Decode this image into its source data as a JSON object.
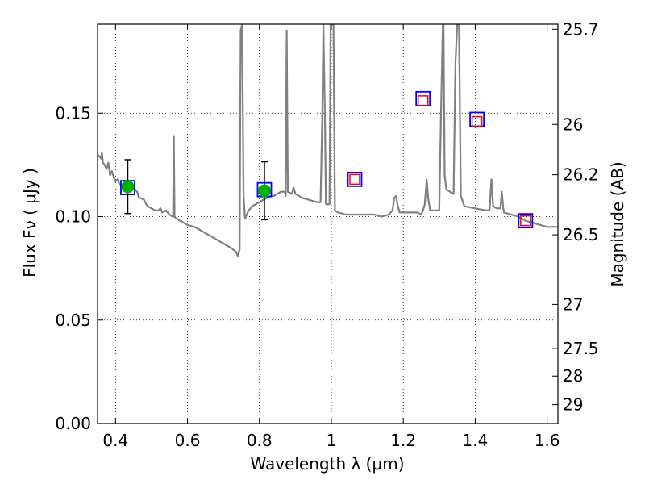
{
  "chart_data": {
    "type": "line",
    "xlabel": "Wavelength  λ (μm)",
    "ylabel": "Flux  Fν  ( μJy )",
    "y2label": "Magnitude (AB)",
    "xlim": [
      0.35,
      1.63
    ],
    "ylim": [
      0.0,
      0.193
    ],
    "grid": true,
    "x_ticks": [
      {
        "value": 0.4,
        "label": "0.4"
      },
      {
        "value": 0.6,
        "label": "0.6"
      },
      {
        "value": 0.8,
        "label": "0.8"
      },
      {
        "value": 1.0,
        "label": "1"
      },
      {
        "value": 1.2,
        "label": "1.2"
      },
      {
        "value": 1.4,
        "label": "1.4"
      },
      {
        "value": 1.6,
        "label": "1.6"
      }
    ],
    "y_ticks": [
      {
        "value": 0.0,
        "label": "0.00"
      },
      {
        "value": 0.05,
        "label": "0.05"
      },
      {
        "value": 0.1,
        "label": "0.10"
      },
      {
        "value": 0.15,
        "label": "0.15"
      }
    ],
    "y2_ticks": [
      {
        "value": 25.7,
        "label": "25.7"
      },
      {
        "value": 26.0,
        "label": "26"
      },
      {
        "value": 26.2,
        "label": "26.2"
      },
      {
        "value": 26.5,
        "label": "26.5"
      },
      {
        "value": 27.0,
        "label": "27"
      },
      {
        "value": 27.5,
        "label": "27.5"
      },
      {
        "value": 28.0,
        "label": "28"
      },
      {
        "value": 29.0,
        "label": "29"
      }
    ],
    "model_spectrum": {
      "color": "#808080",
      "points": [
        [
          0.35,
          0.13
        ],
        [
          0.36,
          0.128
        ],
        [
          0.362,
          0.131
        ],
        [
          0.365,
          0.126
        ],
        [
          0.37,
          0.125
        ],
        [
          0.375,
          0.123
        ],
        [
          0.38,
          0.126
        ],
        [
          0.385,
          0.12
        ],
        [
          0.39,
          0.122
        ],
        [
          0.395,
          0.119
        ],
        [
          0.4,
          0.117
        ],
        [
          0.405,
          0.118
        ],
        [
          0.41,
          0.116
        ],
        [
          0.42,
          0.115
        ],
        [
          0.43,
          0.115
        ],
        [
          0.44,
          0.115
        ],
        [
          0.45,
          0.114
        ],
        [
          0.46,
          0.112
        ],
        [
          0.465,
          0.109
        ],
        [
          0.47,
          0.109
        ],
        [
          0.48,
          0.108
        ],
        [
          0.485,
          0.106
        ],
        [
          0.49,
          0.105
        ],
        [
          0.5,
          0.104
        ],
        [
          0.51,
          0.103
        ],
        [
          0.52,
          0.103
        ],
        [
          0.525,
          0.104
        ],
        [
          0.53,
          0.102
        ],
        [
          0.54,
          0.103
        ],
        [
          0.55,
          0.101
        ],
        [
          0.558,
          0.1
        ],
        [
          0.56,
          0.1
        ],
        [
          0.562,
          0.139
        ],
        [
          0.564,
          0.1
        ],
        [
          0.57,
          0.099
        ],
        [
          0.58,
          0.098
        ],
        [
          0.59,
          0.097
        ],
        [
          0.6,
          0.096
        ],
        [
          0.62,
          0.095
        ],
        [
          0.64,
          0.093
        ],
        [
          0.66,
          0.091
        ],
        [
          0.68,
          0.089
        ],
        [
          0.7,
          0.087
        ],
        [
          0.72,
          0.085
        ],
        [
          0.735,
          0.083
        ],
        [
          0.74,
          0.081
        ],
        [
          0.745,
          0.084
        ],
        [
          0.748,
          0.19
        ],
        [
          0.752,
          0.193
        ],
        [
          0.756,
          0.11
        ],
        [
          0.76,
          0.099
        ],
        [
          0.765,
          0.101
        ],
        [
          0.77,
          0.103
        ],
        [
          0.78,
          0.105
        ],
        [
          0.79,
          0.106
        ],
        [
          0.8,
          0.107
        ],
        [
          0.81,
          0.108
        ],
        [
          0.82,
          0.109
        ],
        [
          0.83,
          0.11
        ],
        [
          0.84,
          0.11
        ],
        [
          0.85,
          0.111
        ],
        [
          0.86,
          0.112
        ],
        [
          0.87,
          0.112
        ],
        [
          0.873,
          0.11
        ],
        [
          0.876,
          0.19
        ],
        [
          0.879,
          0.112
        ],
        [
          0.89,
          0.111
        ],
        [
          0.895,
          0.114
        ],
        [
          0.9,
          0.111
        ],
        [
          0.91,
          0.11
        ],
        [
          0.92,
          0.109
        ],
        [
          0.94,
          0.108
        ],
        [
          0.96,
          0.107
        ],
        [
          0.97,
          0.107
        ],
        [
          0.975,
          0.15
        ],
        [
          0.978,
          0.193
        ],
        [
          0.982,
          0.15
        ],
        [
          0.985,
          0.106
        ],
        [
          0.99,
          0.106
        ],
        [
          0.995,
          0.106
        ],
        [
          0.998,
          0.193
        ],
        [
          1.002,
          0.193
        ],
        [
          1.006,
          0.193
        ],
        [
          1.01,
          0.103
        ],
        [
          1.02,
          0.102
        ],
        [
          1.04,
          0.101
        ],
        [
          1.06,
          0.101
        ],
        [
          1.08,
          0.101
        ],
        [
          1.1,
          0.101
        ],
        [
          1.12,
          0.101
        ],
        [
          1.14,
          0.1
        ],
        [
          1.16,
          0.101
        ],
        [
          1.17,
          0.103
        ],
        [
          1.175,
          0.109
        ],
        [
          1.18,
          0.11
        ],
        [
          1.185,
          0.105
        ],
        [
          1.19,
          0.102
        ],
        [
          1.2,
          0.102
        ],
        [
          1.22,
          0.102
        ],
        [
          1.24,
          0.102
        ],
        [
          1.25,
          0.101
        ],
        [
          1.255,
          0.103
        ],
        [
          1.26,
          0.106
        ],
        [
          1.265,
          0.118
        ],
        [
          1.27,
          0.108
        ],
        [
          1.275,
          0.103
        ],
        [
          1.28,
          0.103
        ],
        [
          1.29,
          0.103
        ],
        [
          1.3,
          0.103
        ],
        [
          1.305,
          0.15
        ],
        [
          1.31,
          0.193
        ],
        [
          1.312,
          0.193
        ],
        [
          1.315,
          0.12
        ],
        [
          1.32,
          0.113
        ],
        [
          1.33,
          0.112
        ],
        [
          1.34,
          0.111
        ],
        [
          1.345,
          0.174
        ],
        [
          1.35,
          0.193
        ],
        [
          1.355,
          0.193
        ],
        [
          1.36,
          0.11
        ],
        [
          1.37,
          0.105
        ],
        [
          1.4,
          0.104
        ],
        [
          1.43,
          0.103
        ],
        [
          1.44,
          0.103
        ],
        [
          1.445,
          0.118
        ],
        [
          1.45,
          0.105
        ],
        [
          1.46,
          0.104
        ],
        [
          1.47,
          0.104
        ],
        [
          1.474,
          0.112
        ],
        [
          1.478,
          0.104
        ],
        [
          1.48,
          0.102
        ],
        [
          1.5,
          0.101
        ],
        [
          1.52,
          0.1
        ],
        [
          1.54,
          0.098
        ],
        [
          1.56,
          0.097
        ],
        [
          1.58,
          0.096
        ],
        [
          1.6,
          0.095
        ],
        [
          1.62,
          0.095
        ],
        [
          1.63,
          0.095
        ]
      ]
    },
    "observed_points": [
      {
        "x": 0.434,
        "y": 0.1145,
        "yerr": 0.013
      },
      {
        "x": 0.814,
        "y": 0.1125,
        "yerr": 0.014
      }
    ],
    "model_photometry": [
      {
        "x": 0.434,
        "y": 0.114
      },
      {
        "x": 0.814,
        "y": 0.113
      },
      {
        "x": 1.065,
        "y": 0.118
      },
      {
        "x": 1.255,
        "y": 0.157
      },
      {
        "x": 1.405,
        "y": 0.147
      },
      {
        "x": 1.54,
        "y": 0.098
      }
    ],
    "predicted_points": [
      {
        "x": 1.065,
        "y": 0.118
      },
      {
        "x": 1.255,
        "y": 0.156
      },
      {
        "x": 1.405,
        "y": 0.146
      },
      {
        "x": 1.54,
        "y": 0.098
      }
    ],
    "colors": {
      "spectrum": "#808080",
      "observed": "#00b000",
      "model_box": "#0000ff",
      "predicted_box": "#ff0000",
      "grid": "#000000"
    }
  }
}
